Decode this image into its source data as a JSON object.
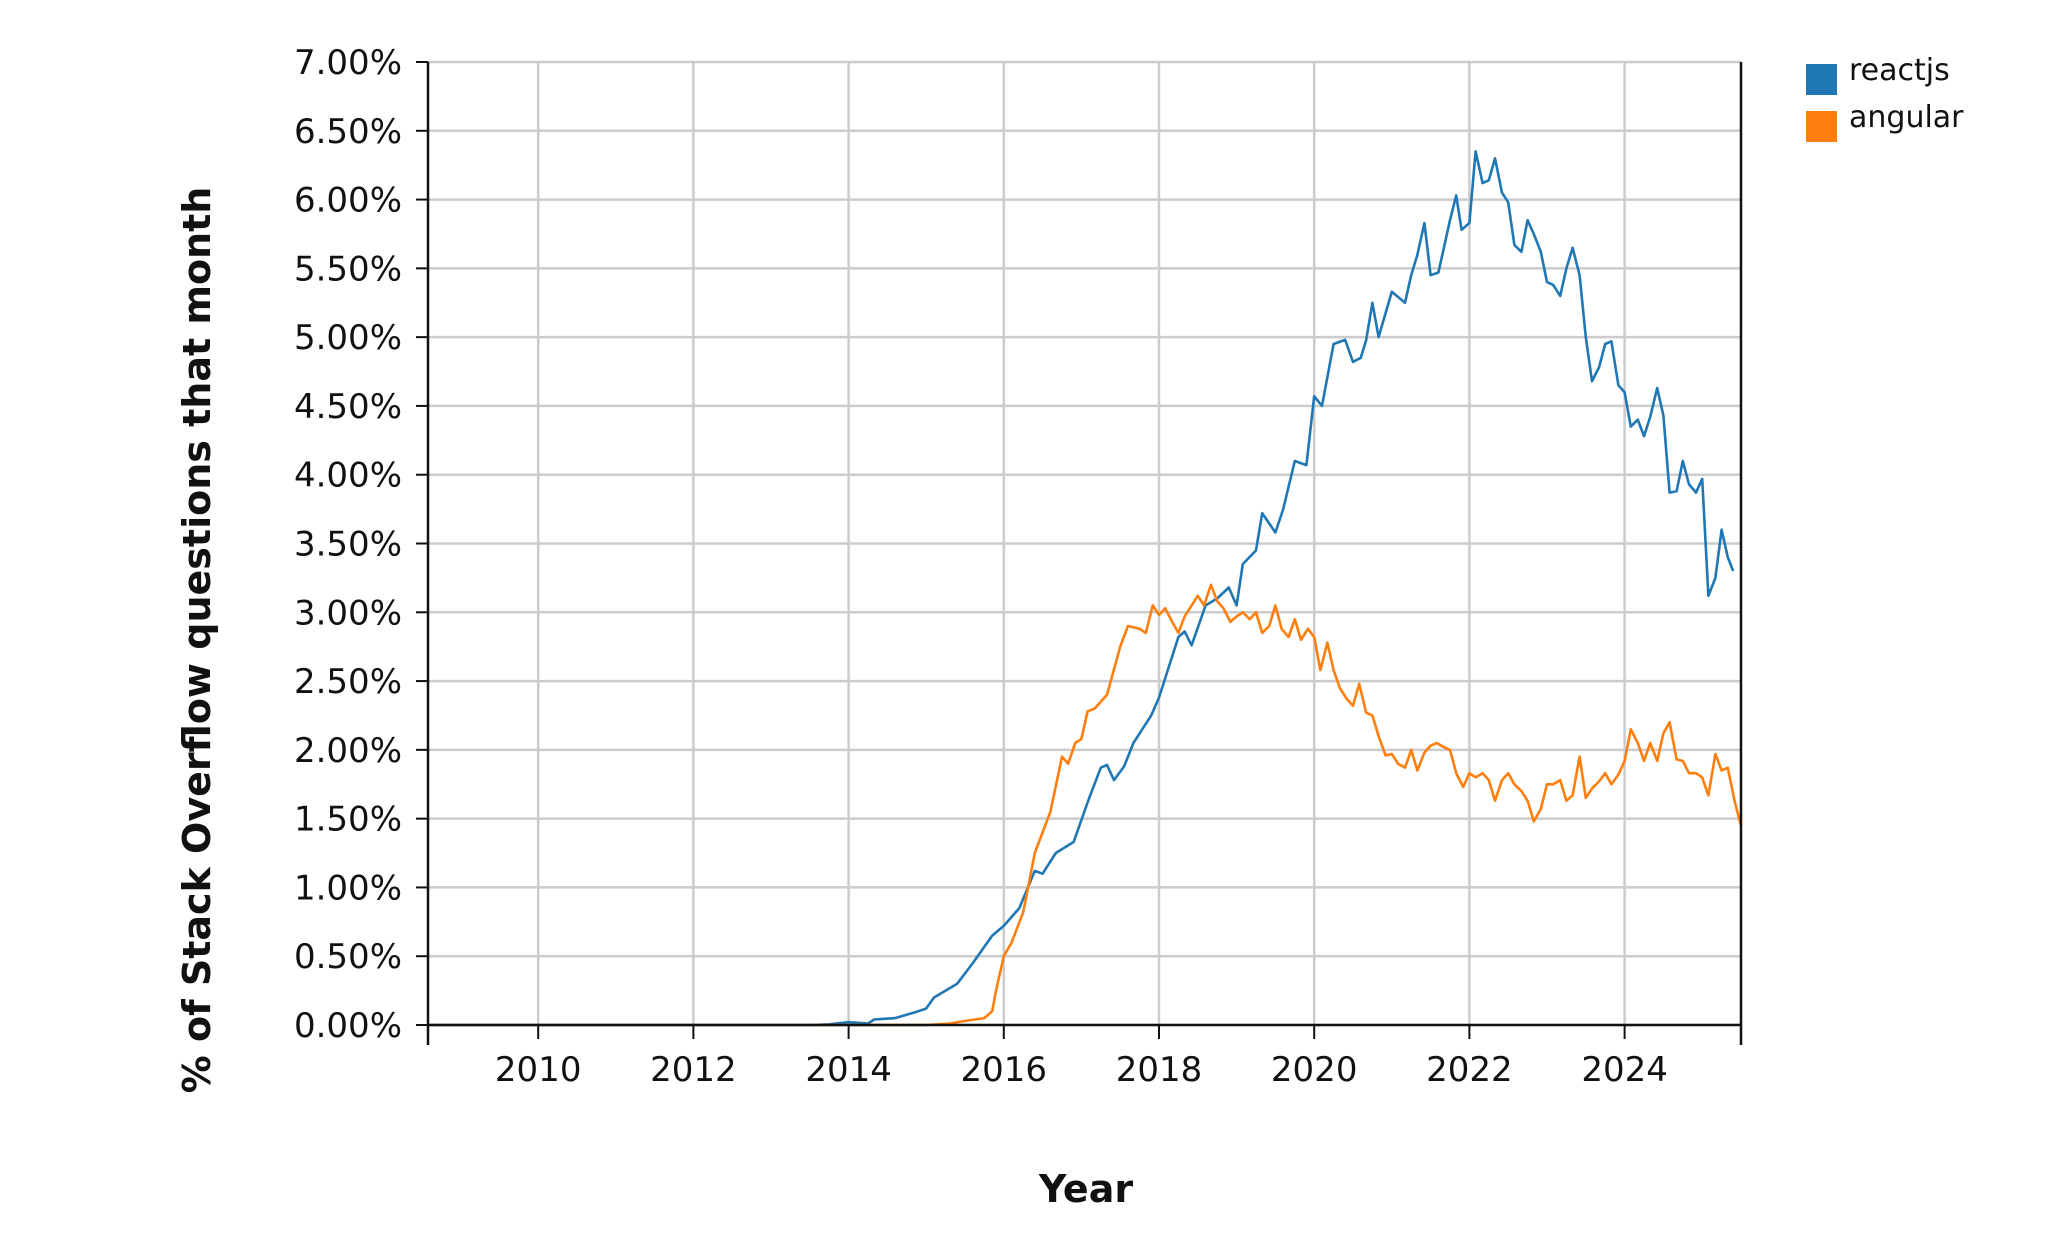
{
  "chart_data": {
    "type": "line",
    "title": "",
    "xlabel": "Year",
    "ylabel": "% of Stack Overflow questions that month",
    "xlim": [
      2008.58,
      2025.5
    ],
    "ylim": [
      0,
      7.0
    ],
    "x_ticks": [
      2010,
      2012,
      2014,
      2016,
      2018,
      2020,
      2022,
      2024
    ],
    "x_tick_labels": [
      "2010",
      "2012",
      "2014",
      "2016",
      "2018",
      "2020",
      "2022",
      "2024"
    ],
    "y_ticks": [
      0,
      0.5,
      1.0,
      1.5,
      2.0,
      2.5,
      3.0,
      3.5,
      4.0,
      4.5,
      5.0,
      5.5,
      6.0,
      6.5,
      7.0
    ],
    "y_tick_labels": [
      "0.00%",
      "0.50%",
      "1.00%",
      "1.50%",
      "2.00%",
      "2.50%",
      "3.00%",
      "3.50%",
      "4.00%",
      "4.50%",
      "5.00%",
      "5.50%",
      "6.00%",
      "6.50%",
      "7.00%"
    ],
    "grid": true,
    "legend_position": "top-right, outside plot",
    "series": [
      {
        "name": "reactjs",
        "color": "#1f77b4",
        "points": [
          [
            2008.58,
            0.0
          ],
          [
            2013.5,
            0.0
          ],
          [
            2013.75,
            0.005
          ],
          [
            2014.0,
            0.02
          ],
          [
            2014.25,
            0.01
          ],
          [
            2014.33,
            0.04
          ],
          [
            2014.6,
            0.05
          ],
          [
            2014.9,
            0.1
          ],
          [
            2015.0,
            0.12
          ],
          [
            2015.1,
            0.2
          ],
          [
            2015.25,
            0.25
          ],
          [
            2015.4,
            0.3
          ],
          [
            2015.6,
            0.45
          ],
          [
            2015.85,
            0.65
          ],
          [
            2016.0,
            0.72
          ],
          [
            2016.2,
            0.85
          ],
          [
            2016.4,
            1.12
          ],
          [
            2016.5,
            1.1
          ],
          [
            2016.67,
            1.25
          ],
          [
            2016.9,
            1.33
          ],
          [
            2017.1,
            1.65
          ],
          [
            2017.25,
            1.87
          ],
          [
            2017.33,
            1.89
          ],
          [
            2017.42,
            1.78
          ],
          [
            2017.55,
            1.88
          ],
          [
            2017.67,
            2.05
          ],
          [
            2017.9,
            2.25
          ],
          [
            2018.0,
            2.38
          ],
          [
            2018.25,
            2.82
          ],
          [
            2018.33,
            2.86
          ],
          [
            2018.42,
            2.76
          ],
          [
            2018.6,
            3.05
          ],
          [
            2018.75,
            3.1
          ],
          [
            2018.9,
            3.18
          ],
          [
            2019.0,
            3.05
          ],
          [
            2019.08,
            3.35
          ],
          [
            2019.25,
            3.45
          ],
          [
            2019.33,
            3.72
          ],
          [
            2019.5,
            3.58
          ],
          [
            2019.6,
            3.75
          ],
          [
            2019.75,
            4.1
          ],
          [
            2019.9,
            4.07
          ],
          [
            2020.0,
            4.57
          ],
          [
            2020.1,
            4.5
          ],
          [
            2020.25,
            4.95
          ],
          [
            2020.4,
            4.98
          ],
          [
            2020.5,
            4.82
          ],
          [
            2020.6,
            4.85
          ],
          [
            2020.67,
            4.98
          ],
          [
            2020.75,
            5.25
          ],
          [
            2020.83,
            5.0
          ],
          [
            2021.0,
            5.33
          ],
          [
            2021.17,
            5.25
          ],
          [
            2021.25,
            5.45
          ],
          [
            2021.33,
            5.6
          ],
          [
            2021.42,
            5.83
          ],
          [
            2021.5,
            5.45
          ],
          [
            2021.6,
            5.47
          ],
          [
            2021.75,
            5.85
          ],
          [
            2021.83,
            6.03
          ],
          [
            2021.9,
            5.78
          ],
          [
            2022.0,
            5.83
          ],
          [
            2022.08,
            6.35
          ],
          [
            2022.17,
            6.12
          ],
          [
            2022.25,
            6.14
          ],
          [
            2022.33,
            6.3
          ],
          [
            2022.42,
            6.05
          ],
          [
            2022.5,
            5.98
          ],
          [
            2022.58,
            5.67
          ],
          [
            2022.67,
            5.62
          ],
          [
            2022.75,
            5.85
          ],
          [
            2022.83,
            5.75
          ],
          [
            2022.92,
            5.62
          ],
          [
            2023.0,
            5.4
          ],
          [
            2023.08,
            5.38
          ],
          [
            2023.17,
            5.3
          ],
          [
            2023.25,
            5.5
          ],
          [
            2023.33,
            5.65
          ],
          [
            2023.42,
            5.45
          ],
          [
            2023.5,
            5.0
          ],
          [
            2023.58,
            4.68
          ],
          [
            2023.67,
            4.78
          ],
          [
            2023.75,
            4.95
          ],
          [
            2023.83,
            4.97
          ],
          [
            2023.92,
            4.65
          ],
          [
            2024.0,
            4.6
          ],
          [
            2024.08,
            4.35
          ],
          [
            2024.17,
            4.4
          ],
          [
            2024.25,
            4.28
          ],
          [
            2024.33,
            4.42
          ],
          [
            2024.42,
            4.63
          ],
          [
            2024.5,
            4.43
          ],
          [
            2024.58,
            3.87
          ],
          [
            2024.67,
            3.88
          ],
          [
            2024.75,
            4.1
          ],
          [
            2024.83,
            3.93
          ],
          [
            2024.92,
            3.87
          ],
          [
            2025.0,
            3.97
          ],
          [
            2025.08,
            3.12
          ],
          [
            2025.17,
            3.25
          ],
          [
            2025.25,
            3.6
          ],
          [
            2025.33,
            3.4
          ],
          [
            2025.4,
            3.3
          ]
        ]
      },
      {
        "name": "angular",
        "color": "#ff7f0e",
        "points": [
          [
            2008.58,
            0.0
          ],
          [
            2015.0,
            0.0
          ],
          [
            2015.3,
            0.01
          ],
          [
            2015.5,
            0.03
          ],
          [
            2015.75,
            0.05
          ],
          [
            2015.85,
            0.1
          ],
          [
            2015.9,
            0.25
          ],
          [
            2016.0,
            0.5
          ],
          [
            2016.1,
            0.6
          ],
          [
            2016.25,
            0.82
          ],
          [
            2016.4,
            1.25
          ],
          [
            2016.6,
            1.55
          ],
          [
            2016.75,
            1.95
          ],
          [
            2016.83,
            1.9
          ],
          [
            2016.92,
            2.05
          ],
          [
            2017.0,
            2.08
          ],
          [
            2017.08,
            2.28
          ],
          [
            2017.17,
            2.3
          ],
          [
            2017.33,
            2.4
          ],
          [
            2017.5,
            2.75
          ],
          [
            2017.6,
            2.9
          ],
          [
            2017.75,
            2.88
          ],
          [
            2017.83,
            2.85
          ],
          [
            2017.92,
            3.05
          ],
          [
            2018.0,
            2.98
          ],
          [
            2018.08,
            3.03
          ],
          [
            2018.17,
            2.93
          ],
          [
            2018.25,
            2.85
          ],
          [
            2018.33,
            2.97
          ],
          [
            2018.5,
            3.12
          ],
          [
            2018.58,
            3.05
          ],
          [
            2018.67,
            3.2
          ],
          [
            2018.75,
            3.08
          ],
          [
            2018.83,
            3.03
          ],
          [
            2018.92,
            2.93
          ],
          [
            2019.0,
            2.97
          ],
          [
            2019.08,
            3.0
          ],
          [
            2019.17,
            2.95
          ],
          [
            2019.25,
            3.0
          ],
          [
            2019.33,
            2.85
          ],
          [
            2019.42,
            2.9
          ],
          [
            2019.5,
            3.05
          ],
          [
            2019.58,
            2.88
          ],
          [
            2019.67,
            2.82
          ],
          [
            2019.75,
            2.95
          ],
          [
            2019.83,
            2.8
          ],
          [
            2019.92,
            2.88
          ],
          [
            2020.0,
            2.82
          ],
          [
            2020.08,
            2.58
          ],
          [
            2020.17,
            2.78
          ],
          [
            2020.25,
            2.58
          ],
          [
            2020.33,
            2.45
          ],
          [
            2020.42,
            2.37
          ],
          [
            2020.5,
            2.32
          ],
          [
            2020.58,
            2.48
          ],
          [
            2020.67,
            2.27
          ],
          [
            2020.75,
            2.25
          ],
          [
            2020.83,
            2.1
          ],
          [
            2020.92,
            1.96
          ],
          [
            2021.0,
            1.97
          ],
          [
            2021.08,
            1.9
          ],
          [
            2021.17,
            1.87
          ],
          [
            2021.25,
            2.0
          ],
          [
            2021.33,
            1.85
          ],
          [
            2021.42,
            1.98
          ],
          [
            2021.5,
            2.03
          ],
          [
            2021.58,
            2.05
          ],
          [
            2021.67,
            2.02
          ],
          [
            2021.75,
            2.0
          ],
          [
            2021.83,
            1.83
          ],
          [
            2021.92,
            1.73
          ],
          [
            2022.0,
            1.83
          ],
          [
            2022.08,
            1.8
          ],
          [
            2022.17,
            1.83
          ],
          [
            2022.25,
            1.78
          ],
          [
            2022.33,
            1.63
          ],
          [
            2022.42,
            1.78
          ],
          [
            2022.5,
            1.83
          ],
          [
            2022.58,
            1.75
          ],
          [
            2022.67,
            1.7
          ],
          [
            2022.75,
            1.63
          ],
          [
            2022.83,
            1.48
          ],
          [
            2022.92,
            1.57
          ],
          [
            2023.0,
            1.75
          ],
          [
            2023.08,
            1.75
          ],
          [
            2023.17,
            1.78
          ],
          [
            2023.25,
            1.63
          ],
          [
            2023.33,
            1.67
          ],
          [
            2023.42,
            1.95
          ],
          [
            2023.5,
            1.65
          ],
          [
            2023.58,
            1.72
          ],
          [
            2023.67,
            1.77
          ],
          [
            2023.75,
            1.83
          ],
          [
            2023.83,
            1.75
          ],
          [
            2023.92,
            1.82
          ],
          [
            2024.0,
            1.92
          ],
          [
            2024.08,
            2.15
          ],
          [
            2024.17,
            2.05
          ],
          [
            2024.25,
            1.92
          ],
          [
            2024.33,
            2.05
          ],
          [
            2024.42,
            1.92
          ],
          [
            2024.5,
            2.12
          ],
          [
            2024.58,
            2.2
          ],
          [
            2024.67,
            1.93
          ],
          [
            2024.75,
            1.92
          ],
          [
            2024.83,
            1.83
          ],
          [
            2024.92,
            1.83
          ],
          [
            2025.0,
            1.8
          ],
          [
            2025.08,
            1.67
          ],
          [
            2025.17,
            1.97
          ],
          [
            2025.25,
            1.85
          ],
          [
            2025.33,
            1.87
          ],
          [
            2025.42,
            1.62
          ],
          [
            2025.5,
            1.45
          ]
        ]
      }
    ]
  }
}
